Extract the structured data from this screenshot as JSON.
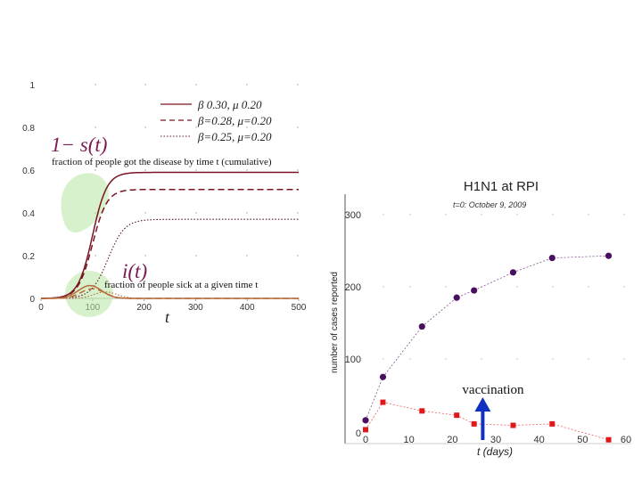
{
  "chart_data": [
    {
      "type": "line",
      "title": "",
      "xlabel": "t",
      "ylabel": "",
      "xlim": [
        0,
        500
      ],
      "ylim": [
        0,
        1
      ],
      "x_ticks": [
        "0",
        "100",
        "200",
        "300",
        "400",
        "500"
      ],
      "y_ticks": [
        "0",
        "0.2",
        "0.4",
        "0.6",
        "0.8",
        "1"
      ],
      "legend_position": "top-right",
      "legend": [
        "β  0.30, μ  0.20",
        "β=0.28, μ=0.20",
        "β=0.25, μ=0.20"
      ],
      "curve_labels": {
        "cumulative_symbol": "1− s(t)",
        "cumulative_note": "fraction of people got the disease by time t (cumulative)",
        "infected_symbol": "i(t)",
        "infected_note": "fraction of people sick at a given time t"
      },
      "series": [
        {
          "group": "cumulative",
          "style": "solid",
          "color": "#7a1422",
          "final": 0.59,
          "midpoint": 100,
          "width": 14
        },
        {
          "group": "cumulative",
          "style": "dashed",
          "color": "#7a1422",
          "final": 0.51,
          "midpoint": 100,
          "width": 14
        },
        {
          "group": "cumulative",
          "style": "dotted",
          "color": "#5a1030",
          "final": 0.37,
          "midpoint": 130,
          "width": 16
        },
        {
          "group": "infected",
          "style": "solid",
          "color": "#b86a3a",
          "peak": 0.06,
          "peak_t": 95
        },
        {
          "group": "infected",
          "style": "dashed",
          "color": "#b86a3a",
          "peak": 0.045,
          "peak_t": 100
        },
        {
          "group": "infected",
          "style": "dotted",
          "color": "#b86a3a",
          "peak": 0.03,
          "peak_t": 125
        }
      ]
    },
    {
      "type": "scatter",
      "title": "H1N1 at RPI",
      "subtitle": "t=0: October 9, 2009",
      "xlabel": "t (days)",
      "ylabel": "number of cases reported",
      "xlim": [
        0,
        60
      ],
      "ylim": [
        0,
        300
      ],
      "x_ticks": [
        "0",
        "10",
        "20",
        "30",
        "40",
        "50",
        "60"
      ],
      "y_ticks": [
        "0",
        "100",
        "200",
        "300"
      ],
      "series": [
        {
          "marker": "circle",
          "color": "#4a1060",
          "x": [
            0,
            4,
            13,
            21,
            25,
            34,
            43,
            56
          ],
          "y": [
            15,
            75,
            145,
            185,
            195,
            220,
            240,
            243
          ]
        },
        {
          "marker": "square",
          "color": "#e01818",
          "x": [
            0,
            4,
            13,
            21,
            25,
            34,
            43,
            56
          ],
          "y": [
            2,
            40,
            28,
            22,
            10,
            8,
            10,
            -12
          ]
        }
      ],
      "annotation": {
        "text": "vaccination",
        "x": 27,
        "arrow_color": "#1030c0"
      }
    }
  ]
}
